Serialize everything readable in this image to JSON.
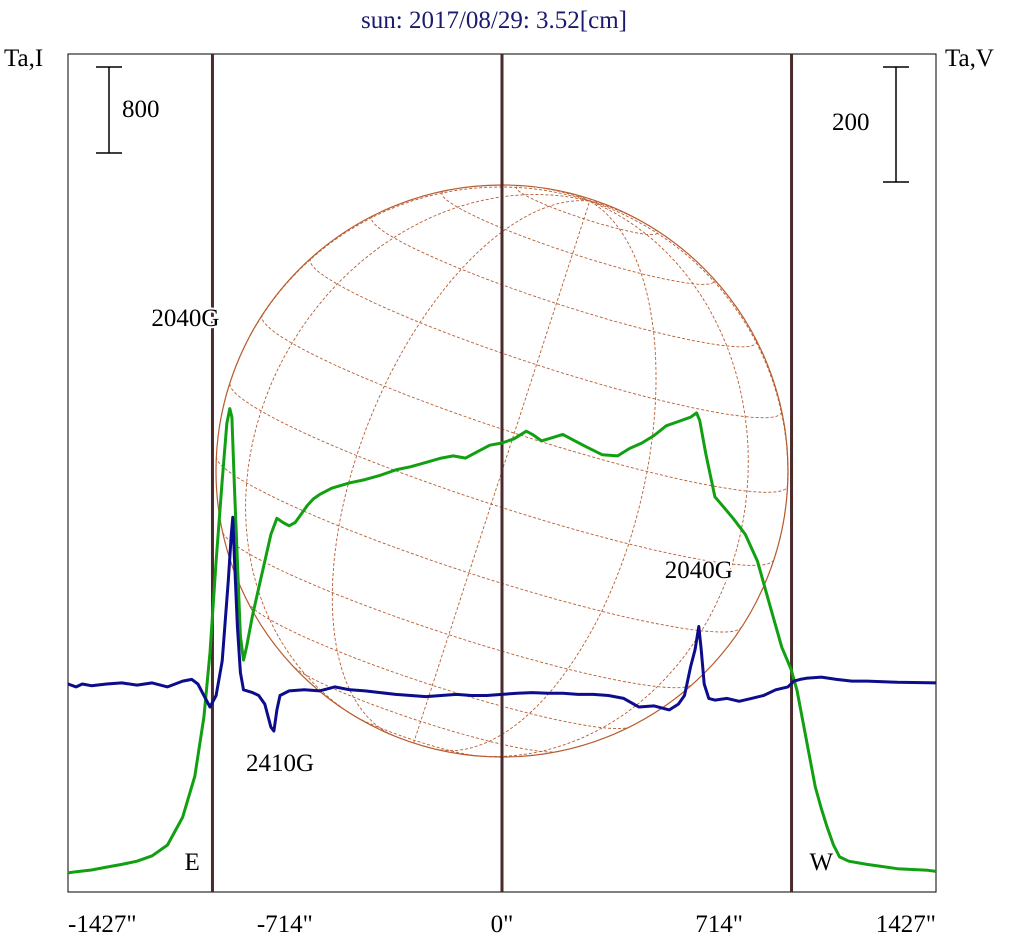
{
  "chart_data": {
    "type": "line",
    "title": "sun: 2017/08/29: 3.52[cm]",
    "left_axis_label": "Ta,I",
    "right_axis_label": "Ta,V",
    "left_scale_bar_label": "800",
    "right_scale_bar_label": "200",
    "x_ticks": [
      {
        "value": -1427,
        "label": "-1427\""
      },
      {
        "value": -714,
        "label": "-714\""
      },
      {
        "value": 0,
        "label": "0\""
      },
      {
        "value": 714,
        "label": "714\""
      },
      {
        "value": 1427,
        "label": "1427\""
      }
    ],
    "xlim": [
      -1427,
      1427
    ],
    "limb_markers": [
      {
        "x": -952,
        "label": "E"
      },
      {
        "x": 0,
        "label": ""
      },
      {
        "x": 952,
        "label": "W"
      }
    ],
    "annotations": [
      {
        "text": "2040G",
        "series": "V",
        "x": -883
      },
      {
        "text": "2410G",
        "series": "V",
        "x": -730
      },
      {
        "text": "2040G",
        "series": "V",
        "x": 647
      }
    ],
    "grid": false,
    "colors": {
      "intensity": "#12a012",
      "polarization": "#0c0c8c",
      "limb_lines": "#4a2a2a",
      "disk": "#b85c30",
      "title": "#1a1a6e"
    },
    "series": [
      {
        "key": "I",
        "color": "#12a012",
        "points": [
          [
            -1427,
            1.0
          ],
          [
            -1400,
            12
          ],
          [
            -1350,
            28
          ],
          [
            -1300,
            55
          ],
          [
            -1250,
            80
          ],
          [
            -1200,
            110
          ],
          [
            -1150,
            160
          ],
          [
            -1100,
            260
          ],
          [
            -1050,
            520
          ],
          [
            -1010,
            900
          ],
          [
            -980,
            1450
          ],
          [
            -960,
            2050
          ],
          [
            -940,
            2900
          ],
          [
            -920,
            3650
          ],
          [
            -905,
            4180
          ],
          [
            -895,
            4320
          ],
          [
            -888,
            4240
          ],
          [
            -880,
            3600
          ],
          [
            -870,
            2900
          ],
          [
            -860,
            2200
          ],
          [
            -850,
            1980
          ],
          [
            -840,
            2100
          ],
          [
            -820,
            2400
          ],
          [
            -800,
            2650
          ],
          [
            -780,
            2900
          ],
          [
            -760,
            3150
          ],
          [
            -740,
            3300
          ],
          [
            -720,
            3260
          ],
          [
            -700,
            3230
          ],
          [
            -680,
            3260
          ],
          [
            -660,
            3340
          ],
          [
            -640,
            3420
          ],
          [
            -620,
            3480
          ],
          [
            -600,
            3520
          ],
          [
            -560,
            3580
          ],
          [
            -500,
            3630
          ],
          [
            -450,
            3660
          ],
          [
            -400,
            3700
          ],
          [
            -350,
            3750
          ],
          [
            -300,
            3780
          ],
          [
            -250,
            3820
          ],
          [
            -200,
            3860
          ],
          [
            -160,
            3880
          ],
          [
            -120,
            3860
          ],
          [
            -80,
            3920
          ],
          [
            -40,
            3980
          ],
          [
            0,
            4000
          ],
          [
            40,
            4040
          ],
          [
            80,
            4110
          ],
          [
            100,
            4080
          ],
          [
            130,
            4020
          ],
          [
            200,
            4080
          ],
          [
            240,
            4020
          ],
          [
            280,
            3960
          ],
          [
            330,
            3890
          ],
          [
            380,
            3880
          ],
          [
            420,
            3950
          ],
          [
            460,
            4000
          ],
          [
            500,
            4070
          ],
          [
            540,
            4160
          ],
          [
            580,
            4200
          ],
          [
            620,
            4240
          ],
          [
            640,
            4280
          ],
          [
            650,
            4210
          ],
          [
            670,
            3900
          ],
          [
            700,
            3500
          ],
          [
            730,
            3400
          ],
          [
            760,
            3300
          ],
          [
            800,
            3150
          ],
          [
            840,
            2900
          ],
          [
            880,
            2500
          ],
          [
            920,
            2100
          ],
          [
            950,
            1900
          ],
          [
            970,
            1700
          ],
          [
            990,
            1400
          ],
          [
            1010,
            1100
          ],
          [
            1030,
            800
          ],
          [
            1050,
            600
          ],
          [
            1070,
            420
          ],
          [
            1090,
            260
          ],
          [
            1110,
            150
          ],
          [
            1140,
            110
          ],
          [
            1200,
            80
          ],
          [
            1300,
            40
          ],
          [
            1400,
            25
          ],
          [
            1427,
            15
          ]
        ]
      },
      {
        "key": "V",
        "color": "#0c0c8c",
        "points": [
          [
            -1427,
            0
          ],
          [
            -1400,
            -5
          ],
          [
            -1380,
            0
          ],
          [
            -1350,
            -3
          ],
          [
            -1300,
            0
          ],
          [
            -1250,
            2
          ],
          [
            -1200,
            -2
          ],
          [
            -1150,
            2
          ],
          [
            -1100,
            -5
          ],
          [
            -1050,
            5
          ],
          [
            -1020,
            8
          ],
          [
            -1000,
            0
          ],
          [
            -980,
            -20
          ],
          [
            -960,
            -40
          ],
          [
            -940,
            -20
          ],
          [
            -920,
            40
          ],
          [
            -900,
            180
          ],
          [
            -890,
            260
          ],
          [
            -885,
            290
          ],
          [
            -880,
            220
          ],
          [
            -870,
            100
          ],
          [
            -860,
            20
          ],
          [
            -850,
            -10
          ],
          [
            -820,
            -15
          ],
          [
            -800,
            -20
          ],
          [
            -780,
            -35
          ],
          [
            -760,
            -75
          ],
          [
            -750,
            -82
          ],
          [
            -740,
            -45
          ],
          [
            -730,
            -20
          ],
          [
            -700,
            -12
          ],
          [
            -650,
            -10
          ],
          [
            -600,
            -12
          ],
          [
            -550,
            -5
          ],
          [
            -500,
            -10
          ],
          [
            -450,
            -12
          ],
          [
            -400,
            -15
          ],
          [
            -350,
            -18
          ],
          [
            -300,
            -20
          ],
          [
            -250,
            -22
          ],
          [
            -200,
            -20
          ],
          [
            -150,
            -18
          ],
          [
            -100,
            -20
          ],
          [
            -50,
            -20
          ],
          [
            0,
            -18
          ],
          [
            50,
            -16
          ],
          [
            100,
            -15
          ],
          [
            150,
            -16
          ],
          [
            200,
            -16
          ],
          [
            250,
            -18
          ],
          [
            300,
            -18
          ],
          [
            350,
            -20
          ],
          [
            400,
            -25
          ],
          [
            450,
            -40
          ],
          [
            500,
            -38
          ],
          [
            550,
            -45
          ],
          [
            580,
            -35
          ],
          [
            600,
            -20
          ],
          [
            620,
            30
          ],
          [
            635,
            60
          ],
          [
            647,
            100
          ],
          [
            655,
            60
          ],
          [
            665,
            0
          ],
          [
            680,
            -25
          ],
          [
            700,
            -28
          ],
          [
            740,
            -25
          ],
          [
            780,
            -30
          ],
          [
            820,
            -25
          ],
          [
            860,
            -20
          ],
          [
            900,
            -10
          ],
          [
            940,
            -5
          ],
          [
            960,
            5
          ],
          [
            980,
            8
          ],
          [
            1000,
            10
          ],
          [
            1050,
            12
          ],
          [
            1100,
            8
          ],
          [
            1150,
            5
          ],
          [
            1200,
            5
          ],
          [
            1300,
            3
          ],
          [
            1427,
            2
          ]
        ]
      }
    ]
  }
}
